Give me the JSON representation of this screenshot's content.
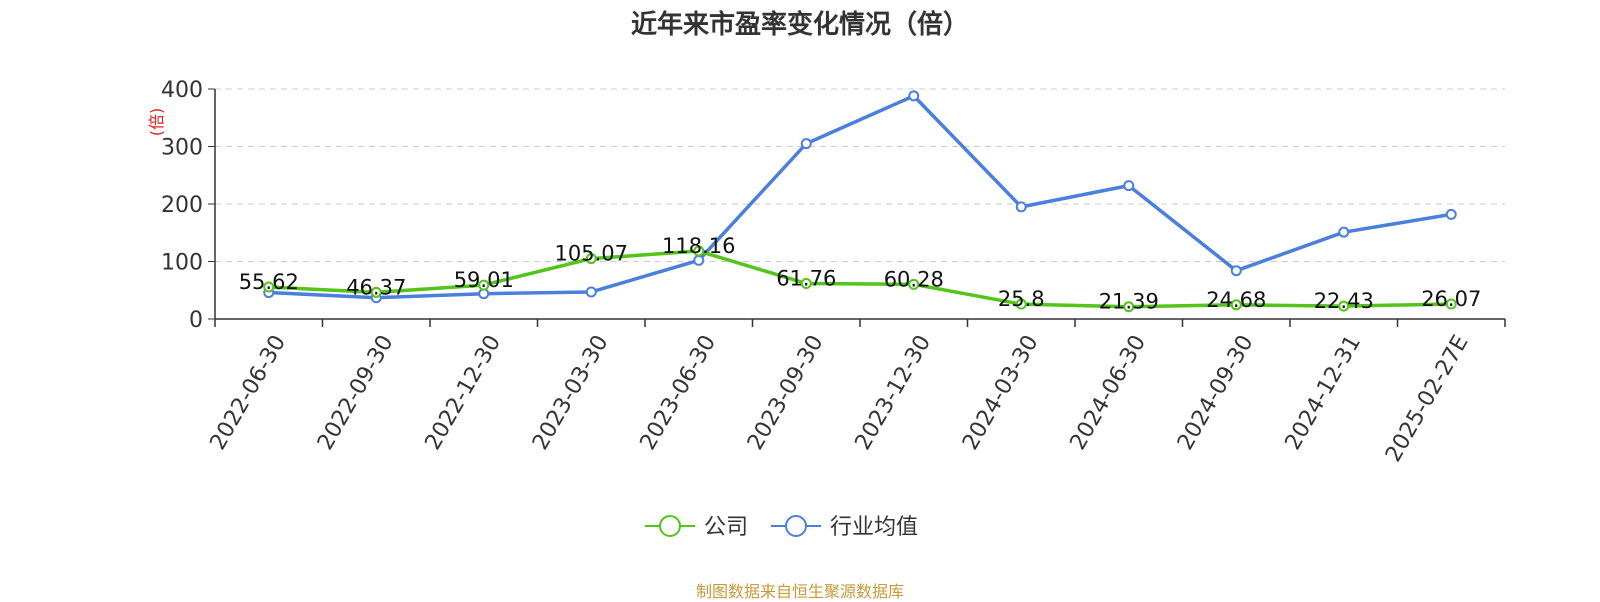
{
  "colors": {
    "company": "#52c41a",
    "industry": "#4a7fdd",
    "axis": "#333333",
    "grid": "#cccccc",
    "ylabel": "#e02020",
    "source": "#c89a3a"
  },
  "chart_data": {
    "type": "line",
    "title": "近年来市盈率变化情况（倍）",
    "ylabel": "(倍)",
    "xlabel": "",
    "ylim": [
      0,
      400
    ],
    "yticks": [
      0,
      100,
      200,
      300,
      400
    ],
    "grid": true,
    "legend_position": "bottom-center",
    "categories": [
      "2022-06-30",
      "2022-09-30",
      "2022-12-30",
      "2023-03-30",
      "2023-06-30",
      "2023-09-30",
      "2023-12-30",
      "2024-03-30",
      "2024-06-30",
      "2024-09-30",
      "2024-12-31",
      "2025-02-27E"
    ],
    "series": [
      {
        "name": "公司",
        "color_key": "company",
        "values": [
          55.62,
          46.37,
          59.01,
          105.07,
          118.16,
          61.76,
          60.28,
          25.8,
          21.39,
          24.68,
          22.43,
          26.07
        ],
        "labels": [
          "55.62",
          "46.37",
          "59.01",
          "105.07",
          "118.16",
          "61.76",
          "60.28",
          "25.8",
          "21.39",
          "24.68",
          "22.43",
          "26.07"
        ]
      },
      {
        "name": "行业均值",
        "color_key": "industry",
        "values": [
          46,
          37,
          44,
          47,
          102,
          305,
          388,
          195,
          232,
          84,
          151,
          182
        ]
      }
    ]
  },
  "source_note": "制图数据来自恒生聚源数据库"
}
